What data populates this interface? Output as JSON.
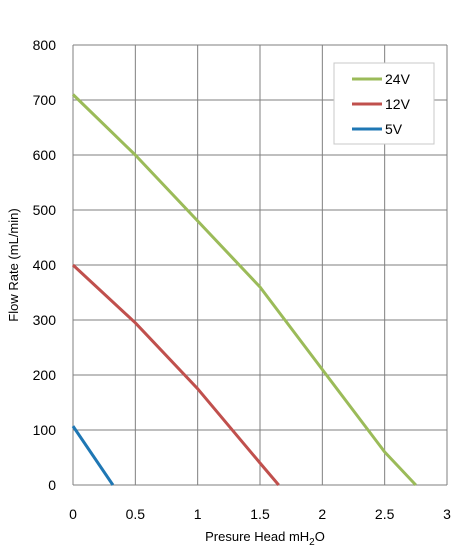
{
  "chart_data": {
    "type": "line",
    "title": "",
    "xlabel": "Presure Head mH",
    "xlabel_sub": "2",
    "xlabel_tail": "O",
    "ylabel": "Flow Rate (mL/min)",
    "xlim": [
      0,
      3
    ],
    "ylim": [
      0,
      800
    ],
    "x_ticks": [
      "0",
      "0.5",
      "1",
      "1.5",
      "2",
      "2.5",
      "3"
    ],
    "x_tick_values": [
      0,
      0.5,
      1,
      1.5,
      2,
      2.5,
      3
    ],
    "y_ticks": [
      "0",
      "100",
      "200",
      "300",
      "400",
      "500",
      "600",
      "700",
      "800"
    ],
    "y_tick_values": [
      0,
      100,
      200,
      300,
      400,
      500,
      600,
      700,
      800
    ],
    "grid": true,
    "legend_position": "top-right",
    "series": [
      {
        "name": "24V",
        "color": "#9BBB59",
        "x": [
          0,
          0.5,
          1,
          1.5,
          2,
          2.5,
          2.75
        ],
        "y": [
          710,
          600,
          480,
          360,
          210,
          60,
          0
        ]
      },
      {
        "name": "12V",
        "color": "#C0504D",
        "x": [
          0,
          0.5,
          1,
          1.5,
          1.65
        ],
        "y": [
          400,
          295,
          175,
          40,
          0
        ]
      },
      {
        "name": "5V",
        "color": "#1F77B4",
        "x": [
          0,
          0.32
        ],
        "y": [
          107,
          0
        ]
      }
    ]
  }
}
